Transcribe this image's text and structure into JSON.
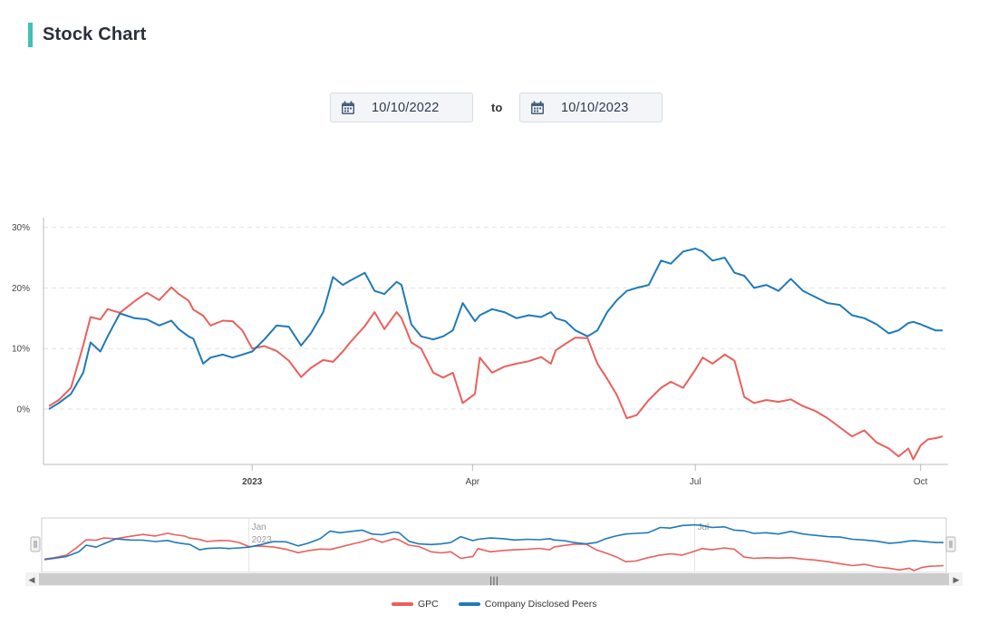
{
  "header": {
    "title": "Stock Chart"
  },
  "date_range": {
    "from": "10/10/2022",
    "separator": "to",
    "to": "10/10/2023",
    "icon": "calendar-icon"
  },
  "navigator": {
    "scroll_handle_glyph": "|||",
    "left_arrow": "◀",
    "right_arrow": "▶"
  },
  "colors": {
    "GPC": "#e8605c",
    "Company Disclosed Peers": "#1f7ab8",
    "accent": "#3fc1b9"
  },
  "chart_data": {
    "type": "line",
    "title": "",
    "xlabel": "",
    "ylabel": "",
    "x_range": [
      "2022-10-10",
      "2023-10-10"
    ],
    "ylim": [
      -9,
      32
    ],
    "y_ticks": [
      0,
      10,
      20,
      30
    ],
    "y_tick_labels": [
      "0%",
      "10%",
      "20%",
      "30%"
    ],
    "x_ticks": [
      {
        "date": "2023-01-01",
        "label": "2023"
      },
      {
        "date": "2023-04-01",
        "label": "Apr"
      },
      {
        "date": "2023-07-01",
        "label": "Jul"
      },
      {
        "date": "2023-10-01",
        "label": "Oct"
      }
    ],
    "navigator_ticks": [
      {
        "date": "2023-01-01",
        "label": "Jan",
        "sublabel": "2023"
      },
      {
        "date": "2023-07-01",
        "label": "Jul"
      }
    ],
    "grid": true,
    "legend_position": "bottom-center",
    "series": [
      {
        "name": "GPC",
        "x": [
          "2022-10-10",
          "2022-10-14",
          "2022-10-19",
          "2022-10-24",
          "2022-10-27",
          "2022-10-31",
          "2022-11-03",
          "2022-11-08",
          "2022-11-14",
          "2022-11-19",
          "2022-11-24",
          "2022-11-29",
          "2022-12-02",
          "2022-12-06",
          "2022-12-08",
          "2022-12-12",
          "2022-12-15",
          "2022-12-20",
          "2022-12-24",
          "2022-12-28",
          "2023-01-01",
          "2023-01-06",
          "2023-01-11",
          "2023-01-16",
          "2023-01-21",
          "2023-01-25",
          "2023-01-30",
          "2023-02-03",
          "2023-02-07",
          "2023-02-10",
          "2023-02-16",
          "2023-02-20",
          "2023-02-24",
          "2023-03-01",
          "2023-03-03",
          "2023-03-07",
          "2023-03-11",
          "2023-03-16",
          "2023-03-20",
          "2023-03-24",
          "2023-03-28",
          "2023-04-02",
          "2023-04-04",
          "2023-04-09",
          "2023-04-14",
          "2023-04-19",
          "2023-04-24",
          "2023-04-29",
          "2023-05-03",
          "2023-05-05",
          "2023-05-09",
          "2023-05-13",
          "2023-05-18",
          "2023-05-22",
          "2023-05-26",
          "2023-05-30",
          "2023-06-03",
          "2023-06-07",
          "2023-06-12",
          "2023-06-17",
          "2023-06-21",
          "2023-06-26",
          "2023-07-01",
          "2023-07-04",
          "2023-07-08",
          "2023-07-13",
          "2023-07-17",
          "2023-07-21",
          "2023-07-25",
          "2023-07-30",
          "2023-08-04",
          "2023-08-09",
          "2023-08-14",
          "2023-08-19",
          "2023-08-24",
          "2023-08-29",
          "2023-09-03",
          "2023-09-08",
          "2023-09-13",
          "2023-09-18",
          "2023-09-22",
          "2023-09-26",
          "2023-09-28",
          "2023-10-01",
          "2023-10-04",
          "2023-10-07",
          "2023-10-10"
        ],
        "y": [
          0.5,
          1.5,
          3.5,
          10.5,
          15.2,
          14.8,
          16.5,
          15.9,
          17.8,
          19.2,
          18.0,
          20.1,
          19.0,
          17.9,
          16.4,
          15.4,
          13.8,
          14.6,
          14.5,
          13.0,
          10.0,
          10.4,
          9.6,
          8.0,
          5.3,
          6.8,
          8.1,
          7.8,
          9.5,
          11.0,
          13.7,
          16.0,
          13.2,
          16.0,
          15.0,
          11.0,
          10.0,
          6.0,
          5.2,
          6.0,
          1.0,
          2.5,
          8.5,
          6.0,
          7.0,
          7.5,
          7.9,
          8.6,
          7.5,
          9.7,
          10.8,
          11.8,
          11.7,
          7.5,
          5.0,
          2.3,
          -1.5,
          -1.0,
          1.5,
          3.5,
          4.5,
          3.5,
          6.5,
          8.5,
          7.5,
          9.0,
          8.0,
          2.0,
          1.0,
          1.5,
          1.2,
          1.6,
          0.5,
          -0.3,
          -1.5,
          -3.0,
          -4.5,
          -3.5,
          -5.5,
          -6.5,
          -7.8,
          -6.5,
          -8.3,
          -6.0,
          -5.0,
          -4.8,
          -4.5
        ]
      },
      {
        "name": "Company Disclosed Peers",
        "x": [
          "2022-10-10",
          "2022-10-14",
          "2022-10-19",
          "2022-10-24",
          "2022-10-27",
          "2022-10-31",
          "2022-11-03",
          "2022-11-08",
          "2022-11-14",
          "2022-11-19",
          "2022-11-24",
          "2022-11-29",
          "2022-12-02",
          "2022-12-06",
          "2022-12-08",
          "2022-12-12",
          "2022-12-15",
          "2022-12-20",
          "2022-12-24",
          "2022-12-28",
          "2023-01-01",
          "2023-01-06",
          "2023-01-11",
          "2023-01-16",
          "2023-01-21",
          "2023-01-25",
          "2023-01-30",
          "2023-02-03",
          "2023-02-07",
          "2023-02-10",
          "2023-02-16",
          "2023-02-20",
          "2023-02-24",
          "2023-03-01",
          "2023-03-03",
          "2023-03-07",
          "2023-03-11",
          "2023-03-16",
          "2023-03-20",
          "2023-03-24",
          "2023-03-28",
          "2023-04-02",
          "2023-04-04",
          "2023-04-09",
          "2023-04-14",
          "2023-04-19",
          "2023-04-24",
          "2023-04-29",
          "2023-05-03",
          "2023-05-05",
          "2023-05-09",
          "2023-05-13",
          "2023-05-18",
          "2023-05-22",
          "2023-05-26",
          "2023-05-30",
          "2023-06-03",
          "2023-06-07",
          "2023-06-12",
          "2023-06-17",
          "2023-06-21",
          "2023-06-26",
          "2023-07-01",
          "2023-07-04",
          "2023-07-08",
          "2023-07-13",
          "2023-07-17",
          "2023-07-21",
          "2023-07-25",
          "2023-07-30",
          "2023-08-04",
          "2023-08-09",
          "2023-08-14",
          "2023-08-19",
          "2023-08-24",
          "2023-08-29",
          "2023-09-03",
          "2023-09-08",
          "2023-09-13",
          "2023-09-18",
          "2023-09-22",
          "2023-09-26",
          "2023-09-28",
          "2023-10-01",
          "2023-10-04",
          "2023-10-07",
          "2023-10-10"
        ],
        "y": [
          0.0,
          1.0,
          2.5,
          6.0,
          11.0,
          9.5,
          12.0,
          15.8,
          15.0,
          14.8,
          13.8,
          14.6,
          13.2,
          12.0,
          11.6,
          7.5,
          8.5,
          9.0,
          8.5,
          9.0,
          9.5,
          11.5,
          13.8,
          13.6,
          10.5,
          12.5,
          16.0,
          21.8,
          20.5,
          21.2,
          22.5,
          19.5,
          19.0,
          21.0,
          20.5,
          14.0,
          12.0,
          11.5,
          12.0,
          13.0,
          17.5,
          14.5,
          15.5,
          16.5,
          16.0,
          15.0,
          15.5,
          15.2,
          16.0,
          15.0,
          14.5,
          13.0,
          12.0,
          13.0,
          16.0,
          18.0,
          19.5,
          20.0,
          20.5,
          24.5,
          24.0,
          26.0,
          26.5,
          26.0,
          24.5,
          25.0,
          22.5,
          22.0,
          20.0,
          20.5,
          19.5,
          21.5,
          19.5,
          18.5,
          17.5,
          17.2,
          15.5,
          15.0,
          14.0,
          12.5,
          13.0,
          14.2,
          14.4,
          14.0,
          13.5,
          13.0,
          13.0
        ]
      }
    ]
  },
  "legend": [
    "GPC",
    "Company Disclosed Peers"
  ]
}
